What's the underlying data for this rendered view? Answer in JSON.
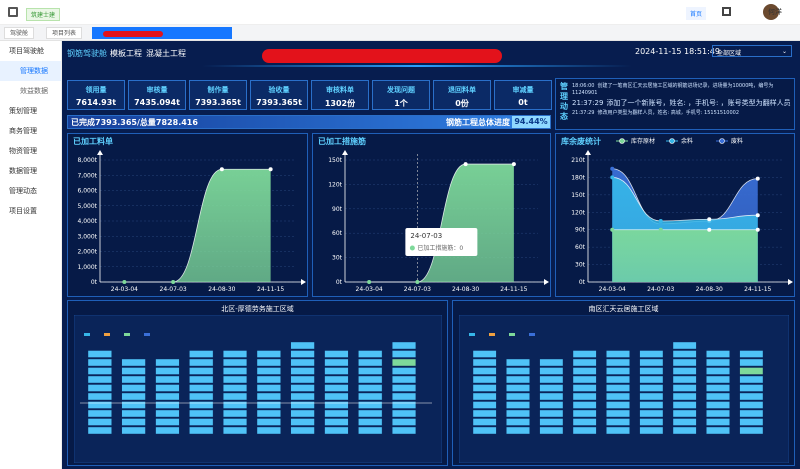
{
  "header": {
    "brand": "筑建士建",
    "home": "首页",
    "user": "何洋"
  },
  "tabs": [
    "驾驶舱",
    "项目列表"
  ],
  "sidebar": [
    "项目驾驶舱",
    "管理数据",
    "效益数据",
    "策划管理",
    "商务管理",
    "物资管理",
    "数据管理",
    "管理动态",
    "项目设置"
  ],
  "nav": [
    "钢筋驾驶舱",
    "模板工程",
    "混凝土工程"
  ],
  "datetime": "2024-11-15 18:51:49",
  "region": "全部区域",
  "stats": [
    {
      "label": "领用量",
      "value": "7614.93t"
    },
    {
      "label": "审核量",
      "value": "7435.094t"
    },
    {
      "label": "制作量",
      "value": "7393.365t"
    },
    {
      "label": "验收量",
      "value": "7393.365t"
    },
    {
      "label": "审核料单",
      "value": "1302份"
    },
    {
      "label": "发现问题",
      "value": "1个"
    },
    {
      "label": "退回料单",
      "value": "0份"
    },
    {
      "label": "审减量",
      "value": "0t"
    }
  ],
  "progress": {
    "summary": "已完成7393.365/总量7828.416",
    "title": "钢筋工程总体进度",
    "percent": 94.44,
    "percent_label": "94.44%"
  },
  "news": {
    "title": "管理动态",
    "items": [
      {
        "time": "18:06:00",
        "text": "创建了一笔南区汇天云居施工区域的钢筋进场记录，进场量为10000吨，编号为11240901"
      },
      {
        "time": "21:37:29",
        "text": "添加了一个新账号，姓名:      ，手机号:        ，账号类型为翻样人员"
      },
      {
        "time": "21:37:29",
        "text": "修改用户类型为翻样人员，姓名: 高城，手机号: 15151510002"
      }
    ]
  },
  "chart_data": [
    {
      "type": "area",
      "title": "已加工料单",
      "categories": [
        "24-03-04",
        "24-07-03",
        "24-08-30",
        "24-11-15"
      ],
      "series": [
        {
          "name": "已加工料单",
          "color": "#7ed99a",
          "values": [
            0,
            0,
            7393.365,
            7393.365
          ]
        }
      ],
      "ylim": [
        0,
        8000
      ],
      "yticks": [
        {
          "value": 0,
          "label": "0t"
        },
        {
          "value": 1000,
          "label": "1,000t"
        },
        {
          "value": 2000,
          "label": "2,000t"
        },
        {
          "value": 3000,
          "label": "3,000t"
        },
        {
          "value": 4000,
          "label": "4,000t"
        },
        {
          "value": 5000,
          "label": "5,000t"
        },
        {
          "value": 6000,
          "label": "6,000t"
        },
        {
          "value": 7000,
          "label": "7,000t"
        },
        {
          "value": 8000,
          "label": "8,000t"
        }
      ],
      "grid": true
    },
    {
      "type": "area",
      "title": "已加工措施筋",
      "categories": [
        "24-03-04",
        "24-07-03",
        "24-08-30",
        "24-11-15"
      ],
      "series": [
        {
          "name": "已加工措施筋",
          "color": "#7ed99a",
          "values": [
            0,
            0,
            145,
            145
          ]
        }
      ],
      "ylim": [
        0,
        150
      ],
      "yticks": [
        {
          "value": 0,
          "label": "0t"
        },
        {
          "value": 30,
          "label": "30t"
        },
        {
          "value": 60,
          "label": "60t"
        },
        {
          "value": 90,
          "label": "90t"
        },
        {
          "value": 120,
          "label": "120t"
        },
        {
          "value": 150,
          "label": "150t"
        }
      ],
      "grid": true,
      "tooltip": {
        "title": "24-07-03",
        "text": "已加工措施筋：0"
      }
    },
    {
      "type": "area",
      "title": "库余废统计",
      "categories": [
        "24-03-04",
        "24-07-03",
        "24-08-30",
        "24-11-15"
      ],
      "series": [
        {
          "name": "库存原材",
          "color": "#7ed99a",
          "values": [
            90,
            90,
            90,
            90
          ]
        },
        {
          "name": "余料",
          "color": "#36b6e8",
          "values": [
            180,
            105,
            108,
            115
          ]
        },
        {
          "name": "废料",
          "color": "#3a6fd8",
          "values": [
            195,
            100,
            105,
            178
          ]
        }
      ],
      "ylim": [
        0,
        210
      ],
      "yticks": [
        {
          "value": 0,
          "label": "0t"
        },
        {
          "value": 30,
          "label": "30t"
        },
        {
          "value": 60,
          "label": "60t"
        },
        {
          "value": 90,
          "label": "90t"
        },
        {
          "value": 120,
          "label": "120t"
        },
        {
          "value": 150,
          "label": "150t"
        },
        {
          "value": 180,
          "label": "180t"
        },
        {
          "value": 210,
          "label": "210t"
        }
      ],
      "grid": true,
      "legend": "top"
    }
  ],
  "zones": [
    {
      "title": "北区-厚德劳务施工区域"
    },
    {
      "title": "南区汇天云居施工区域"
    }
  ]
}
